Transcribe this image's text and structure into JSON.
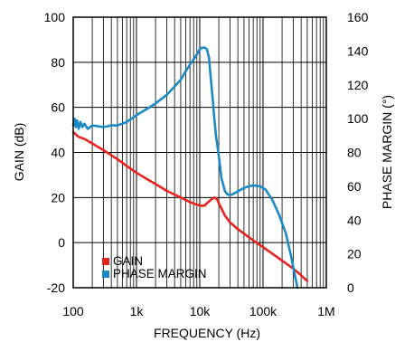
{
  "chart_data": {
    "type": "line",
    "xlabel": "FREQUENCY (Hz)",
    "ylabel_left": "GAIN (dB)",
    "ylabel_right": "PHASE MARGIN (°)",
    "x_scale": "log",
    "xlim": [
      100,
      1000000
    ],
    "ylim_left": [
      -20,
      100
    ],
    "ylim_right": [
      0,
      160
    ],
    "x_ticks": [
      {
        "value": 100,
        "label": "100"
      },
      {
        "value": 1000,
        "label": "1k"
      },
      {
        "value": 10000,
        "label": "10k"
      },
      {
        "value": 100000,
        "label": "100k"
      },
      {
        "value": 1000000,
        "label": "1M"
      }
    ],
    "y_ticks_left": [
      {
        "value": 100,
        "label": "100"
      },
      {
        "value": 80,
        "label": "80"
      },
      {
        "value": 60,
        "label": "60"
      },
      {
        "value": 40,
        "label": "40"
      },
      {
        "value": 20,
        "label": "20"
      },
      {
        "value": 0,
        "label": "0"
      },
      {
        "value": -20,
        "label": "-20"
      }
    ],
    "y_ticks_right": [
      {
        "value": 160,
        "label": "160"
      },
      {
        "value": 140,
        "label": "140"
      },
      {
        "value": 120,
        "label": "120"
      },
      {
        "value": 100,
        "label": "100"
      },
      {
        "value": 80,
        "label": "80"
      },
      {
        "value": 60,
        "label": "60"
      },
      {
        "value": 40,
        "label": "40"
      },
      {
        "value": 20,
        "label": "20"
      },
      {
        "value": 0,
        "label": "0"
      }
    ],
    "grid": true,
    "legend_position": "bottom-left",
    "series": [
      {
        "name": "GAIN",
        "color": "#e8231f",
        "axis": "left",
        "points": [
          [
            100,
            49
          ],
          [
            120,
            47
          ],
          [
            150,
            46
          ],
          [
            200,
            44
          ],
          [
            300,
            41
          ],
          [
            500,
            37
          ],
          [
            700,
            34
          ],
          [
            1000,
            31
          ],
          [
            1500,
            28
          ],
          [
            2000,
            26
          ],
          [
            3000,
            23
          ],
          [
            5000,
            20
          ],
          [
            7000,
            18
          ],
          [
            9000,
            16.8
          ],
          [
            11000,
            16.3
          ],
          [
            12000,
            16.5
          ],
          [
            13000,
            17.5
          ],
          [
            15000,
            19
          ],
          [
            17000,
            20
          ],
          [
            18500,
            19.5
          ],
          [
            20000,
            17.5
          ],
          [
            25000,
            12
          ],
          [
            30000,
            9
          ],
          [
            40000,
            6
          ],
          [
            50000,
            4
          ],
          [
            70000,
            1
          ],
          [
            100000,
            -2
          ],
          [
            150000,
            -5.5
          ],
          [
            200000,
            -8
          ],
          [
            300000,
            -11.5
          ],
          [
            400000,
            -14.5
          ],
          [
            500000,
            -17
          ]
        ]
      },
      {
        "name": "PHASE MARGIN",
        "color": "#1a8ac4",
        "axis": "right",
        "points": [
          [
            100,
            96
          ],
          [
            105,
            100
          ],
          [
            110,
            95
          ],
          [
            115,
            99
          ],
          [
            122,
            94
          ],
          [
            130,
            98
          ],
          [
            140,
            95
          ],
          [
            150,
            97
          ],
          [
            170,
            94
          ],
          [
            200,
            96
          ],
          [
            300,
            95
          ],
          [
            400,
            96
          ],
          [
            500,
            96
          ],
          [
            700,
            98
          ],
          [
            1000,
            102
          ],
          [
            1500,
            106
          ],
          [
            2000,
            109
          ],
          [
            3000,
            114
          ],
          [
            4000,
            119
          ],
          [
            5000,
            123
          ],
          [
            6000,
            128
          ],
          [
            7000,
            132
          ],
          [
            8000,
            135
          ],
          [
            9000,
            138
          ],
          [
            10000,
            141
          ],
          [
            11000,
            142
          ],
          [
            12000,
            142
          ],
          [
            13000,
            141
          ],
          [
            14000,
            136
          ],
          [
            15000,
            123
          ],
          [
            16000,
            112
          ],
          [
            17000,
            100
          ],
          [
            18000,
            90
          ],
          [
            20000,
            78
          ],
          [
            22000,
            65
          ],
          [
            25000,
            57
          ],
          [
            28000,
            55
          ],
          [
            32000,
            55
          ],
          [
            40000,
            57
          ],
          [
            50000,
            59
          ],
          [
            60000,
            60
          ],
          [
            70000,
            60.5
          ],
          [
            90000,
            60
          ],
          [
            110000,
            58
          ],
          [
            140000,
            52
          ],
          [
            180000,
            43
          ],
          [
            230000,
            32
          ],
          [
            280000,
            18
          ],
          [
            320000,
            7
          ],
          [
            350000,
            0
          ]
        ]
      }
    ]
  }
}
